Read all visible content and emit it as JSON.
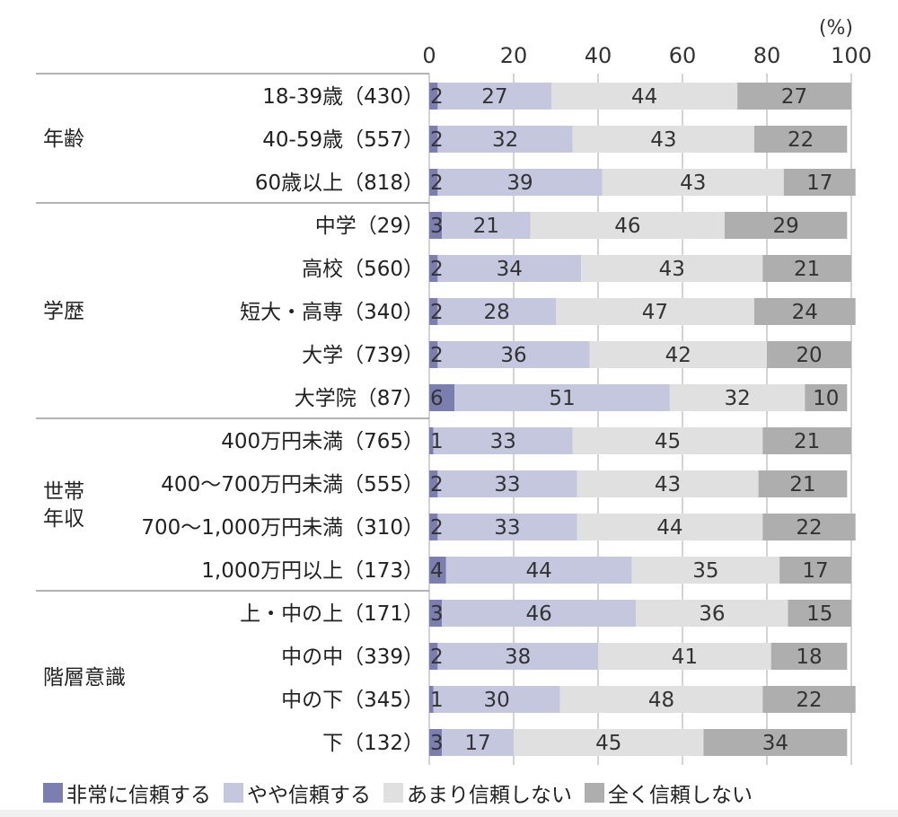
{
  "chart_data": {
    "type": "bar",
    "orientation": "horizontal",
    "stacked": true,
    "unit_label": "(%)",
    "xlim": [
      0,
      100
    ],
    "xticks": [
      0,
      20,
      40,
      60,
      80,
      100
    ],
    "grid": true,
    "legend_position": "bottom",
    "series": [
      {
        "name": "非常に信頼する",
        "color": "#7b7fb0"
      },
      {
        "name": "やや信頼する",
        "color": "#c5c7df"
      },
      {
        "name": "あまり信頼しない",
        "color": "#e0e0e0"
      },
      {
        "name": "全く信頼しない",
        "color": "#aeaeae"
      }
    ],
    "groups": [
      {
        "name": "年齢",
        "rows": [
          {
            "label": "18-39歳（430）",
            "values": [
              2,
              27,
              44,
              27
            ]
          },
          {
            "label": "40-59歳（557）",
            "values": [
              2,
              32,
              43,
              22
            ]
          },
          {
            "label": "60歳以上（818）",
            "values": [
              2,
              39,
              43,
              17
            ]
          }
        ]
      },
      {
        "name": "学歴",
        "rows": [
          {
            "label": "中学（29）",
            "values": [
              3,
              21,
              46,
              29
            ]
          },
          {
            "label": "高校（560）",
            "values": [
              2,
              34,
              43,
              21
            ]
          },
          {
            "label": "短大・高専（340）",
            "values": [
              2,
              28,
              47,
              24
            ]
          },
          {
            "label": "大学（739）",
            "values": [
              2,
              36,
              42,
              20
            ]
          },
          {
            "label": "大学院（87）",
            "values": [
              6,
              51,
              32,
              10
            ]
          }
        ]
      },
      {
        "name": "世帯年収",
        "name_lines": [
          "世帯",
          "年収"
        ],
        "rows": [
          {
            "label": "400万円未満（765）",
            "values": [
              1,
              33,
              45,
              21
            ]
          },
          {
            "label": "400〜700万円未満（555）",
            "values": [
              2,
              33,
              43,
              21
            ]
          },
          {
            "label": "700〜1,000万円未満（310）",
            "values": [
              2,
              33,
              44,
              22
            ]
          },
          {
            "label": "1,000万円以上（173）",
            "values": [
              4,
              44,
              35,
              17
            ]
          }
        ]
      },
      {
        "name": "階層意識",
        "rows": [
          {
            "label": "上・中の上（171）",
            "values": [
              3,
              46,
              36,
              15
            ]
          },
          {
            "label": "中の中（339）",
            "values": [
              2,
              38,
              41,
              18
            ]
          },
          {
            "label": "中の下（345）",
            "values": [
              1,
              30,
              48,
              22
            ]
          },
          {
            "label": "下（132）",
            "values": [
              3,
              17,
              45,
              34
            ]
          }
        ]
      }
    ]
  }
}
